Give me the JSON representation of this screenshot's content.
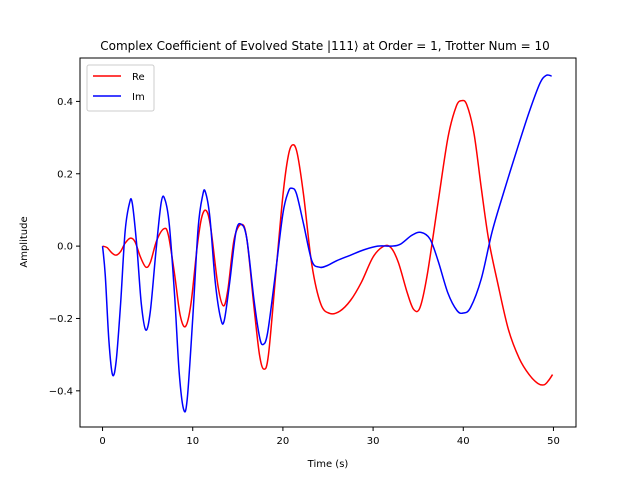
{
  "chart_data": {
    "type": "line",
    "title": "Complex Coefficient of Evolved State |111⟩ at Order = 1, Trotter Num = 10",
    "xlabel": "Time (s)",
    "ylabel": "Amplitude",
    "xlim": [
      -2.5,
      52.5
    ],
    "ylim": [
      -0.5,
      0.52
    ],
    "xticks": [
      0,
      10,
      20,
      30,
      40,
      50
    ],
    "yticks": [
      -0.4,
      -0.2,
      0.0,
      0.2,
      0.4
    ],
    "xtick_labels": [
      "0",
      "10",
      "20",
      "30",
      "40",
      "50"
    ],
    "ytick_labels": [
      "−0.4",
      "−0.2",
      "0.0",
      "0.2",
      "0.4"
    ],
    "grid": false,
    "legend": "top-left",
    "series": [
      {
        "name": "Re",
        "color": "#ff0000",
        "points": [
          [
            0,
            0
          ],
          [
            0.5,
            -0.004
          ],
          [
            1.0,
            -0.018
          ],
          [
            1.5,
            -0.025
          ],
          [
            2.0,
            -0.015
          ],
          [
            2.5,
            0.008
          ],
          [
            3.1,
            0.022
          ],
          [
            3.6,
            0.012
          ],
          [
            4.2,
            -0.03
          ],
          [
            4.8,
            -0.058
          ],
          [
            5.3,
            -0.045
          ],
          [
            6.0,
            0.015
          ],
          [
            6.8,
            0.048
          ],
          [
            7.3,
            0.03
          ],
          [
            8.0,
            -0.08
          ],
          [
            8.6,
            -0.19
          ],
          [
            9.2,
            -0.222
          ],
          [
            9.8,
            -0.16
          ],
          [
            10.5,
            0.0
          ],
          [
            11.0,
            0.08
          ],
          [
            11.5,
            0.098
          ],
          [
            12.0,
            0.05
          ],
          [
            12.8,
            -0.11
          ],
          [
            13.4,
            -0.165
          ],
          [
            13.9,
            -0.12
          ],
          [
            14.6,
            0.02
          ],
          [
            15.4,
            0.06
          ],
          [
            16.0,
            0.02
          ],
          [
            16.8,
            -0.17
          ],
          [
            17.4,
            -0.3
          ],
          [
            17.9,
            -0.34
          ],
          [
            18.4,
            -0.3
          ],
          [
            19.2,
            -0.08
          ],
          [
            20.0,
            0.14
          ],
          [
            20.6,
            0.25
          ],
          [
            21.1,
            0.28
          ],
          [
            21.6,
            0.255
          ],
          [
            22.3,
            0.14
          ],
          [
            23.2,
            -0.05
          ],
          [
            24.2,
            -0.16
          ],
          [
            25.2,
            -0.186
          ],
          [
            26.3,
            -0.18
          ],
          [
            27.5,
            -0.15
          ],
          [
            28.7,
            -0.1
          ],
          [
            30.0,
            -0.03
          ],
          [
            31.2,
            0.0
          ],
          [
            32.0,
            -0.005
          ],
          [
            32.8,
            -0.045
          ],
          [
            33.8,
            -0.13
          ],
          [
            34.5,
            -0.175
          ],
          [
            35.2,
            -0.17
          ],
          [
            36.0,
            -0.08
          ],
          [
            37.2,
            0.12
          ],
          [
            38.3,
            0.3
          ],
          [
            39.2,
            0.385
          ],
          [
            39.8,
            0.402
          ],
          [
            40.4,
            0.39
          ],
          [
            41.2,
            0.31
          ],
          [
            42.0,
            0.16
          ],
          [
            42.8,
            0.02
          ],
          [
            43.8,
            -0.1
          ],
          [
            45.0,
            -0.23
          ],
          [
            46.2,
            -0.31
          ],
          [
            47.3,
            -0.355
          ],
          [
            48.3,
            -0.38
          ],
          [
            49.0,
            -0.383
          ],
          [
            49.5,
            -0.37
          ],
          [
            49.9,
            -0.355
          ]
        ]
      },
      {
        "name": "Im",
        "color": "#0000ff",
        "points": [
          [
            0,
            0
          ],
          [
            0.3,
            -0.08
          ],
          [
            0.7,
            -0.26
          ],
          [
            1.1,
            -0.355
          ],
          [
            1.5,
            -0.32
          ],
          [
            2.0,
            -0.16
          ],
          [
            2.5,
            0.04
          ],
          [
            3.0,
            0.12
          ],
          [
            3.3,
            0.118
          ],
          [
            3.8,
            0.0
          ],
          [
            4.3,
            -0.16
          ],
          [
            4.8,
            -0.232
          ],
          [
            5.3,
            -0.18
          ],
          [
            5.9,
            -0.02
          ],
          [
            6.5,
            0.12
          ],
          [
            6.9,
            0.13
          ],
          [
            7.4,
            0.06
          ],
          [
            8.0,
            -0.14
          ],
          [
            8.5,
            -0.35
          ],
          [
            9.0,
            -0.452
          ],
          [
            9.4,
            -0.42
          ],
          [
            10.0,
            -0.2
          ],
          [
            10.6,
            0.05
          ],
          [
            11.1,
            0.14
          ],
          [
            11.4,
            0.15
          ],
          [
            11.9,
            0.08
          ],
          [
            12.5,
            -0.1
          ],
          [
            13.1,
            -0.2
          ],
          [
            13.5,
            -0.205
          ],
          [
            14.1,
            -0.1
          ],
          [
            14.8,
            0.04
          ],
          [
            15.4,
            0.06
          ],
          [
            16.0,
            0.02
          ],
          [
            16.8,
            -0.15
          ],
          [
            17.4,
            -0.25
          ],
          [
            17.8,
            -0.272
          ],
          [
            18.3,
            -0.24
          ],
          [
            19.1,
            -0.09
          ],
          [
            20.0,
            0.09
          ],
          [
            20.6,
            0.15
          ],
          [
            21.0,
            0.16
          ],
          [
            21.5,
            0.145
          ],
          [
            22.3,
            0.06
          ],
          [
            23.2,
            -0.04
          ],
          [
            24.0,
            -0.058
          ],
          [
            24.8,
            -0.055
          ],
          [
            26.0,
            -0.04
          ],
          [
            27.5,
            -0.025
          ],
          [
            29.0,
            -0.01
          ],
          [
            30.5,
            0.0
          ],
          [
            32.0,
            0.0
          ],
          [
            33.0,
            0.005
          ],
          [
            34.3,
            0.03
          ],
          [
            35.3,
            0.038
          ],
          [
            36.3,
            0.02
          ],
          [
            37.2,
            -0.04
          ],
          [
            38.3,
            -0.13
          ],
          [
            39.3,
            -0.178
          ],
          [
            40.0,
            -0.185
          ],
          [
            40.8,
            -0.17
          ],
          [
            42.0,
            -0.09
          ],
          [
            43.2,
            0.04
          ],
          [
            44.5,
            0.15
          ],
          [
            46.0,
            0.27
          ],
          [
            47.3,
            0.37
          ],
          [
            48.5,
            0.45
          ],
          [
            49.2,
            0.472
          ],
          [
            49.8,
            0.47
          ]
        ]
      }
    ]
  }
}
